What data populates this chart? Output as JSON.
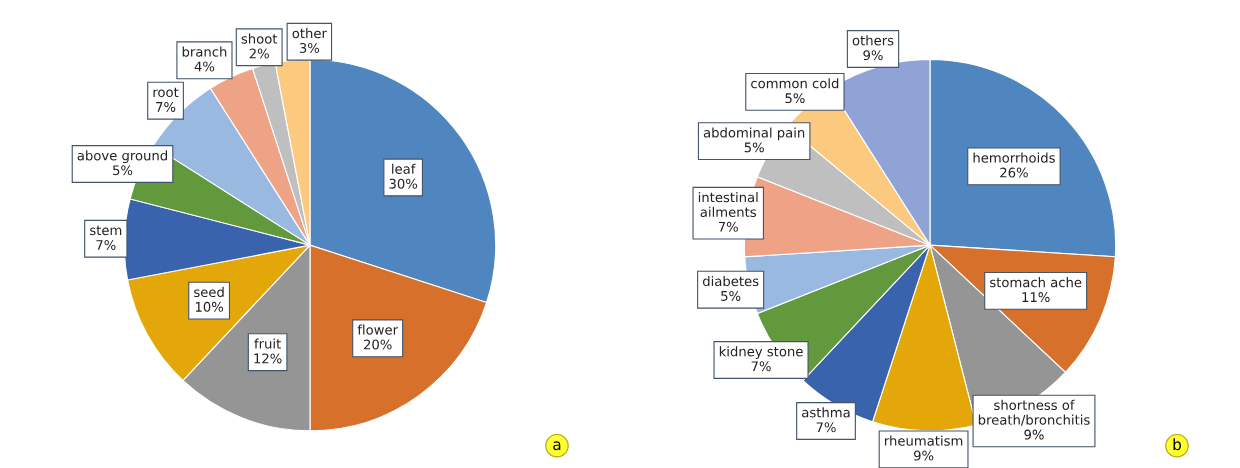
{
  "chart_data": [
    {
      "type": "pie",
      "annotations": [
        "a"
      ],
      "categories": [
        "leaf",
        "flower",
        "fruit",
        "seed",
        "stem",
        "above ground",
        "root",
        "branch",
        "shoot",
        "other"
      ],
      "values": [
        30,
        20,
        12,
        10,
        7,
        5,
        7,
        4,
        2,
        3
      ],
      "value_labels": [
        "30%",
        "20%",
        "12%",
        "10%",
        "7%",
        "5%",
        "7%",
        "4%",
        "2%",
        "3%"
      ],
      "colors": [
        "#4f86bf",
        "#d6702a",
        "#959595",
        "#e3a70a",
        "#3a63ae",
        "#62993c",
        "#99b9e1",
        "#eea386",
        "#bfbfbf",
        "#fcca7e"
      ]
    },
    {
      "type": "pie",
      "annotations": [
        "b"
      ],
      "categories": [
        "hemorrhoids",
        "stomach ache",
        "shortness of\nbreath/bronchitis",
        "rheumatism",
        "asthma",
        "kidney stone",
        "diabetes",
        "intestinal\nailments",
        "abdominal pain",
        "common cold",
        "others"
      ],
      "values": [
        26,
        11,
        9,
        9,
        7,
        7,
        5,
        7,
        5,
        5,
        9
      ],
      "value_labels": [
        "26%",
        "11%",
        "9%",
        "9%",
        "7%",
        "7%",
        "5%",
        "7%",
        "5%",
        "5%",
        "9%"
      ],
      "colors": [
        "#4f86bf",
        "#d6702a",
        "#959595",
        "#e3a70a",
        "#3a63ae",
        "#62993c",
        "#99b9e1",
        "#eea386",
        "#bfbfbf",
        "#fcca7e",
        "#8fa3d6"
      ]
    }
  ]
}
